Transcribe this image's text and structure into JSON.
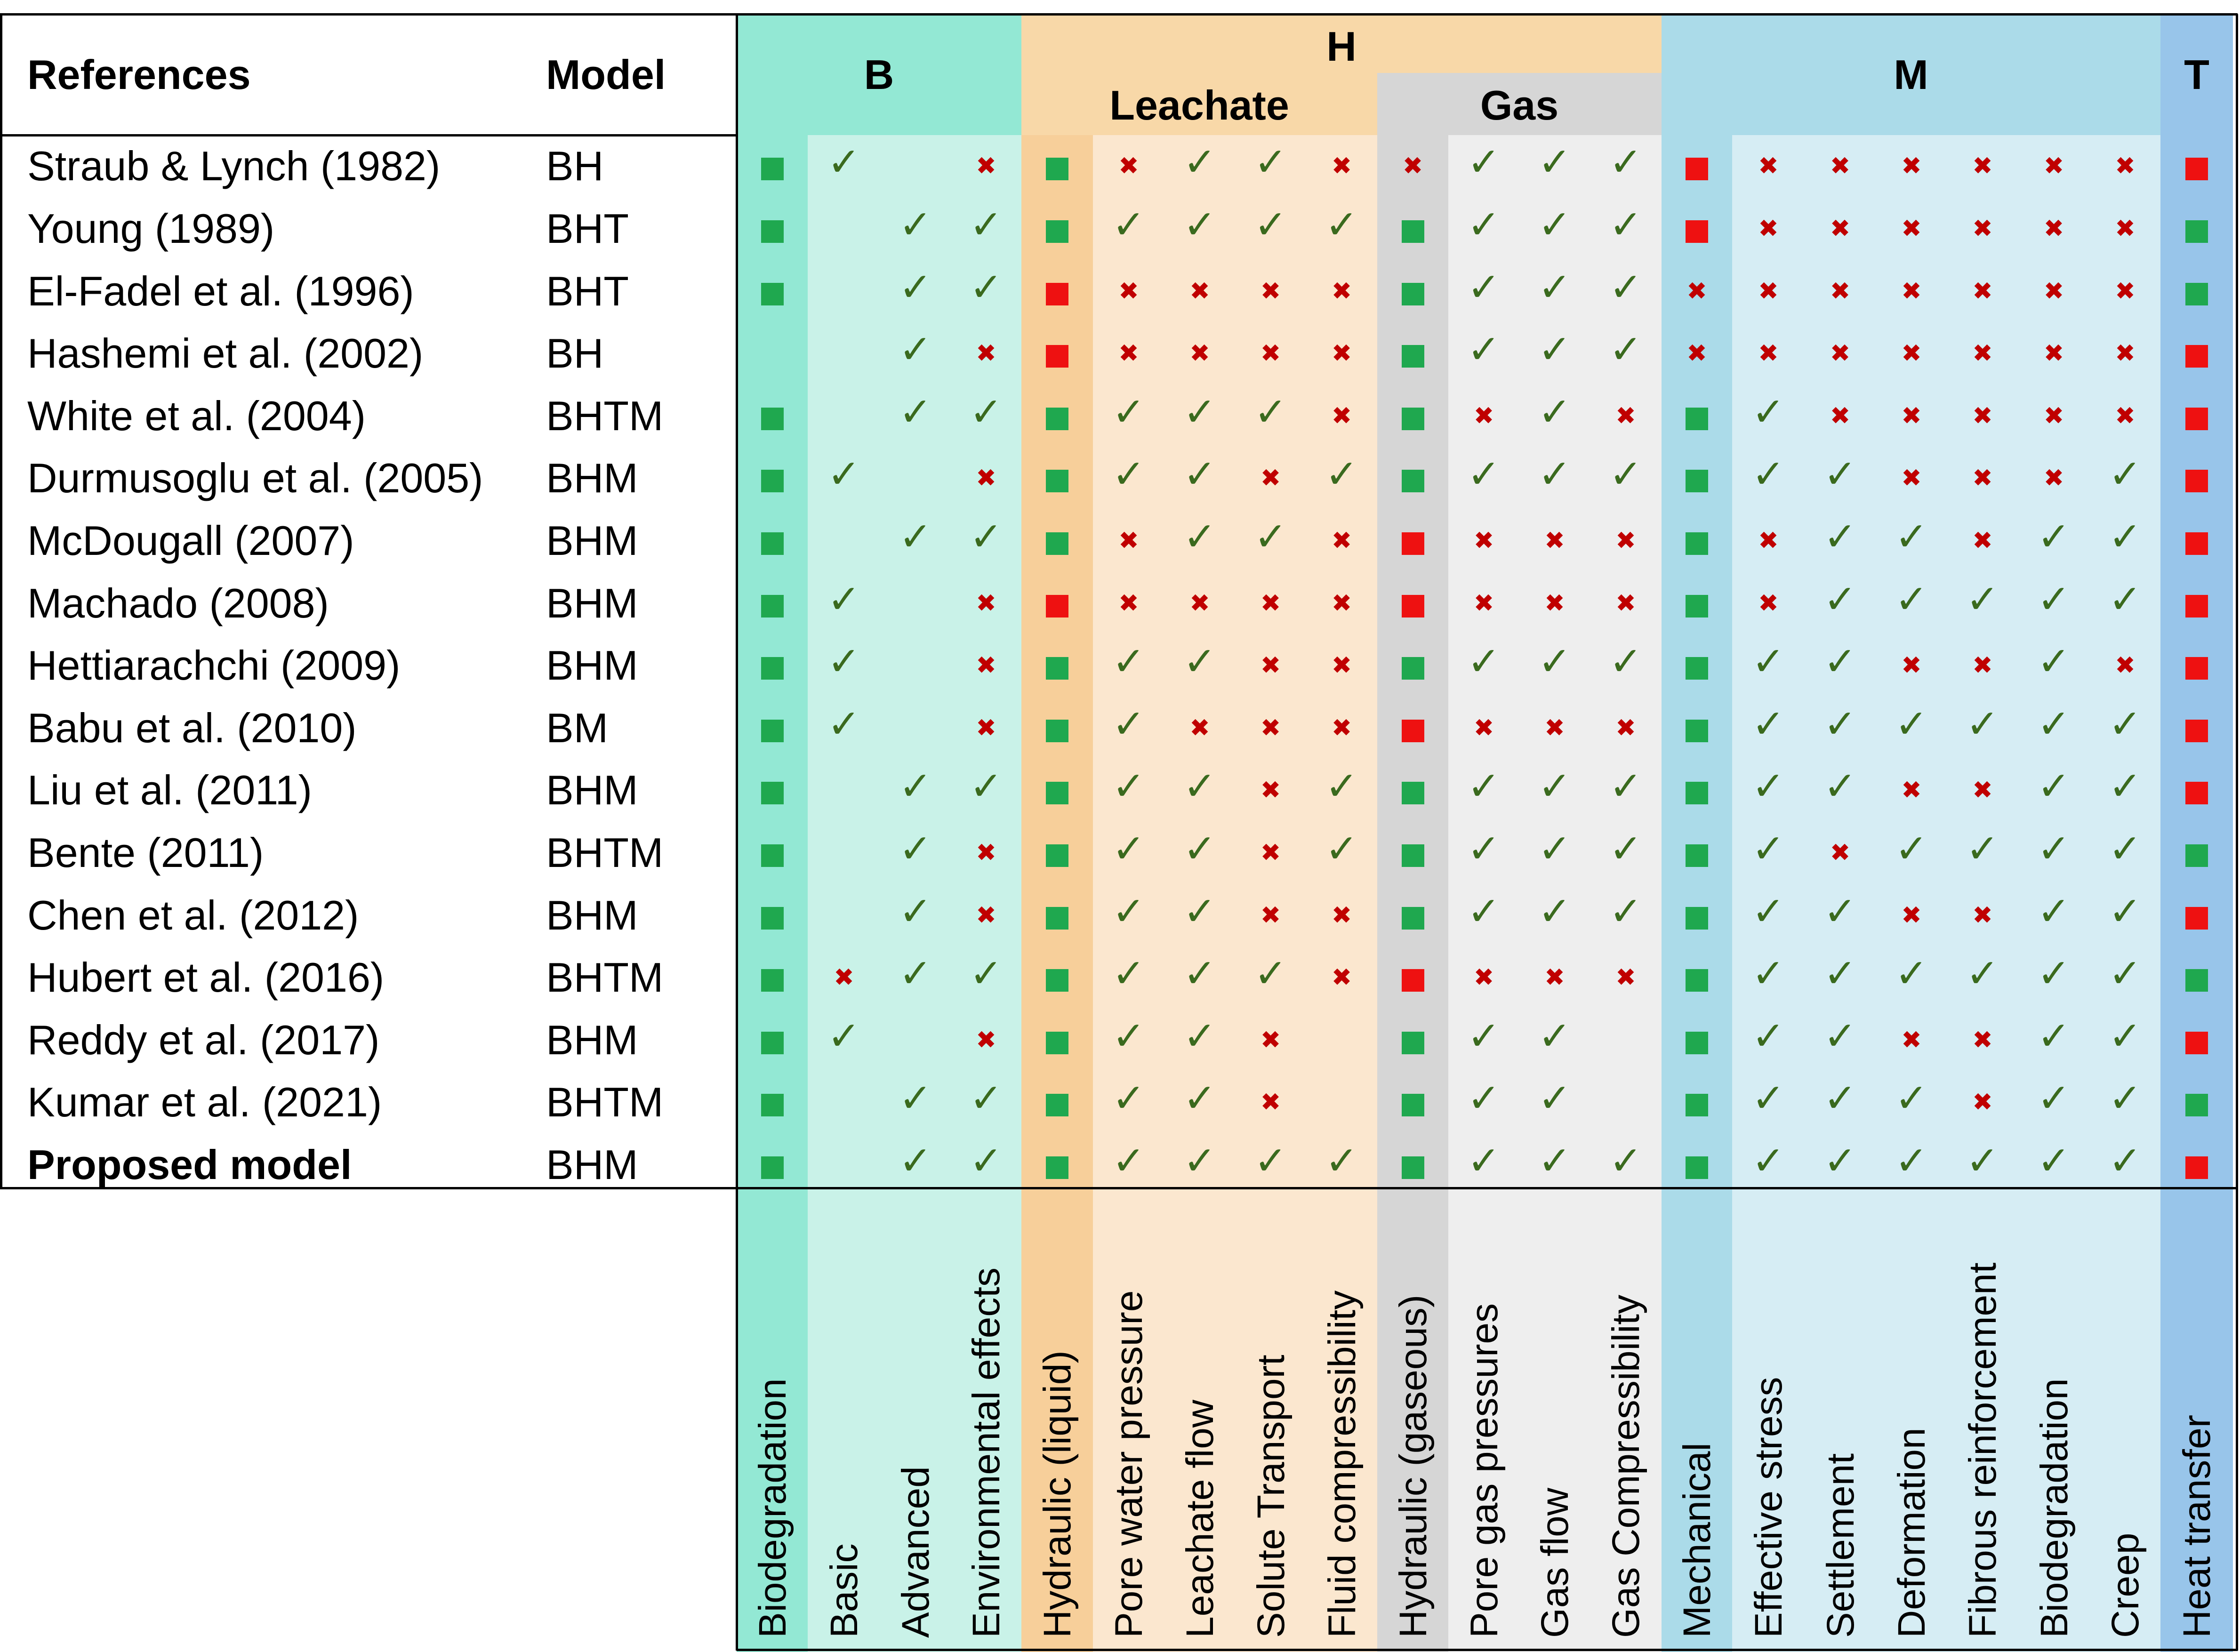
{
  "header": {
    "references_label": "References",
    "model_label": "Model",
    "group_b": "B",
    "group_h": "H",
    "subgroup_leachate": "Leachate",
    "subgroup_gas": "Gas",
    "group_m": "M",
    "group_t": "T"
  },
  "colors": {
    "b_main": "#93e8d4",
    "b_light": "#c9f2e8",
    "h_header": "#f8d8a8",
    "h_main": "#f7cf9a",
    "h_light": "#fbe7cf",
    "gas_main": "#d6d6d6",
    "gas_light": "#eeeeee",
    "m_main": "#abdbe9",
    "m_light": "#d6edf4",
    "t_main": "#98c5ea",
    "square_yes": "#1fa84f",
    "square_no": "#ee1111",
    "tick": "#3a6a1e",
    "cross": "#c00000"
  },
  "columns": [
    {
      "label": "Biodegradation",
      "group": "B"
    },
    {
      "label": "Basic",
      "group": "B"
    },
    {
      "label": "Advanced",
      "group": "B"
    },
    {
      "label": "Environmental effects",
      "group": "B"
    },
    {
      "label": "Hydraulic (liquid)",
      "group": "H"
    },
    {
      "label": "Pore water pressure",
      "group": "H"
    },
    {
      "label": "Leachate flow",
      "group": "H"
    },
    {
      "label": "Solute Transport",
      "group": "H"
    },
    {
      "label": "Fluid compressibility",
      "group": "H"
    },
    {
      "label": "Hydraulic (gaseous)",
      "group": "H"
    },
    {
      "label": "Pore gas pressures",
      "group": "H"
    },
    {
      "label": "Gas flow",
      "group": "H"
    },
    {
      "label": "Gas Compressibility",
      "group": "H"
    },
    {
      "label": "Mechanical",
      "group": "M"
    },
    {
      "label": "Effective stress",
      "group": "M"
    },
    {
      "label": "Settlement",
      "group": "M"
    },
    {
      "label": "Deformation",
      "group": "M"
    },
    {
      "label": "Fibrous reinforcement",
      "group": "M"
    },
    {
      "label": "Biodegradation",
      "group": "M"
    },
    {
      "label": "Creep",
      "group": "M"
    },
    {
      "label": "Heat transfer",
      "group": "T"
    }
  ],
  "legend_codes": {
    "G": "green square",
    "R": "red square",
    "Y": "check mark",
    "N": "cross",
    "-": "blank"
  },
  "rows": [
    {
      "reference": "Straub & Lynch (1982)",
      "model": "BH",
      "cells": [
        "G",
        "Y",
        "-",
        "N",
        "G",
        "N",
        "Y",
        "Y",
        "N",
        "N",
        "Y",
        "Y",
        "Y",
        "R",
        "N",
        "N",
        "N",
        "N",
        "N",
        "N",
        "R"
      ]
    },
    {
      "reference": "Young (1989)",
      "model": "BHT",
      "cells": [
        "G",
        "-",
        "Y",
        "Y",
        "G",
        "Y",
        "Y",
        "Y",
        "Y",
        "G",
        "Y",
        "Y",
        "Y",
        "R",
        "N",
        "N",
        "N",
        "N",
        "N",
        "N",
        "G"
      ]
    },
    {
      "reference": "El-Fadel et al. (1996)",
      "model": "BHT",
      "cells": [
        "G",
        "-",
        "Y",
        "Y",
        "R",
        "N",
        "N",
        "N",
        "N",
        "G",
        "Y",
        "Y",
        "Y",
        "N",
        "N",
        "N",
        "N",
        "N",
        "N",
        "N",
        "G"
      ]
    },
    {
      "reference": "Hashemi et al. (2002)",
      "model": "BH",
      "cells": [
        "-",
        "-",
        "Y",
        "N",
        "R",
        "N",
        "N",
        "N",
        "N",
        "G",
        "Y",
        "Y",
        "Y",
        "N",
        "N",
        "N",
        "N",
        "N",
        "N",
        "N",
        "R"
      ]
    },
    {
      "reference": "White et al. (2004)",
      "model": "BHTM",
      "cells": [
        "G",
        "-",
        "Y",
        "Y",
        "G",
        "Y",
        "Y",
        "Y",
        "N",
        "G",
        "N",
        "Y",
        "N",
        "G",
        "Y",
        "N",
        "N",
        "N",
        "N",
        "N",
        "R"
      ]
    },
    {
      "reference": "Durmusoglu et al. (2005)",
      "model": "BHM",
      "cells": [
        "G",
        "Y",
        "-",
        "N",
        "G",
        "Y",
        "Y",
        "N",
        "Y",
        "G",
        "Y",
        "Y",
        "Y",
        "G",
        "Y",
        "Y",
        "N",
        "N",
        "N",
        "Y",
        "R"
      ]
    },
    {
      "reference": "McDougall (2007)",
      "model": "BHM",
      "cells": [
        "G",
        "-",
        "Y",
        "Y",
        "G",
        "N",
        "Y",
        "Y",
        "N",
        "R",
        "N",
        "N",
        "N",
        "G",
        "N",
        "Y",
        "Y",
        "N",
        "Y",
        "Y",
        "R"
      ]
    },
    {
      "reference": "Machado (2008)",
      "model": "BHM",
      "cells": [
        "G",
        "Y",
        "-",
        "N",
        "R",
        "N",
        "N",
        "N",
        "N",
        "R",
        "N",
        "N",
        "N",
        "G",
        "N",
        "Y",
        "Y",
        "Y",
        "Y",
        "Y",
        "R"
      ]
    },
    {
      "reference": "Hettiarachchi  (2009)",
      "model": "BHM",
      "cells": [
        "G",
        "Y",
        "-",
        "N",
        "G",
        "Y",
        "Y",
        "N",
        "N",
        "G",
        "Y",
        "Y",
        "Y",
        "G",
        "Y",
        "Y",
        "N",
        "N",
        "Y",
        "N",
        "R"
      ]
    },
    {
      "reference": "Babu et al. (2010)",
      "model": "BM",
      "cells": [
        "G",
        "Y",
        "-",
        "N",
        "G",
        "Y",
        "N",
        "N",
        "N",
        "R",
        "N",
        "N",
        "N",
        "G",
        "Y",
        "Y",
        "Y",
        "Y",
        "Y",
        "Y",
        "R"
      ]
    },
    {
      "reference": "Liu et al. (2011)",
      "model": "BHM",
      "cells": [
        "G",
        "-",
        "Y",
        "Y",
        "G",
        "Y",
        "Y",
        "N",
        "Y",
        "G",
        "Y",
        "Y",
        "Y",
        "G",
        "Y",
        "Y",
        "N",
        "N",
        "Y",
        "Y",
        "R"
      ]
    },
    {
      "reference": "Bente (2011)",
      "model": "BHTM",
      "cells": [
        "G",
        "-",
        "Y",
        "N",
        "G",
        "Y",
        "Y",
        "N",
        "Y",
        "G",
        "Y",
        "Y",
        "Y",
        "G",
        "Y",
        "N",
        "Y",
        "Y",
        "Y",
        "Y",
        "G"
      ]
    },
    {
      "reference": "Chen et al. (2012)",
      "model": "BHM",
      "cells": [
        "G",
        "-",
        "Y",
        "N",
        "G",
        "Y",
        "Y",
        "N",
        "N",
        "G",
        "Y",
        "Y",
        "Y",
        "G",
        "Y",
        "Y",
        "N",
        "N",
        "Y",
        "Y",
        "R"
      ]
    },
    {
      "reference": "Hubert et al. (2016)",
      "model": "BHTM",
      "cells": [
        "G",
        "N",
        "Y",
        "Y",
        "G",
        "Y",
        "Y",
        "Y",
        "N",
        "R",
        "N",
        "N",
        "N",
        "G",
        "Y",
        "Y",
        "Y",
        "Y",
        "Y",
        "Y",
        "G"
      ]
    },
    {
      "reference": "Reddy et al. (2017)",
      "model": "BHM",
      "cells": [
        "G",
        "Y",
        "-",
        "N",
        "G",
        "Y",
        "Y",
        "N",
        "-",
        "G",
        "Y",
        "Y",
        "-",
        "G",
        "Y",
        "Y",
        "N",
        "N",
        "Y",
        "Y",
        "R"
      ]
    },
    {
      "reference": "Kumar et al. (2021)",
      "model": "BHTM",
      "cells": [
        "G",
        "-",
        "Y",
        "Y",
        "G",
        "Y",
        "Y",
        "N",
        "-",
        "G",
        "Y",
        "Y",
        "-",
        "G",
        "Y",
        "Y",
        "Y",
        "N",
        "Y",
        "Y",
        "G"
      ]
    },
    {
      "reference": "Proposed model",
      "model": "BHM",
      "bold": true,
      "cells": [
        "G",
        "-",
        "Y",
        "Y",
        "G",
        "Y",
        "Y",
        "Y",
        "Y",
        "G",
        "Y",
        "Y",
        "Y",
        "G",
        "Y",
        "Y",
        "Y",
        "Y",
        "Y",
        "Y",
        "R"
      ]
    }
  ]
}
